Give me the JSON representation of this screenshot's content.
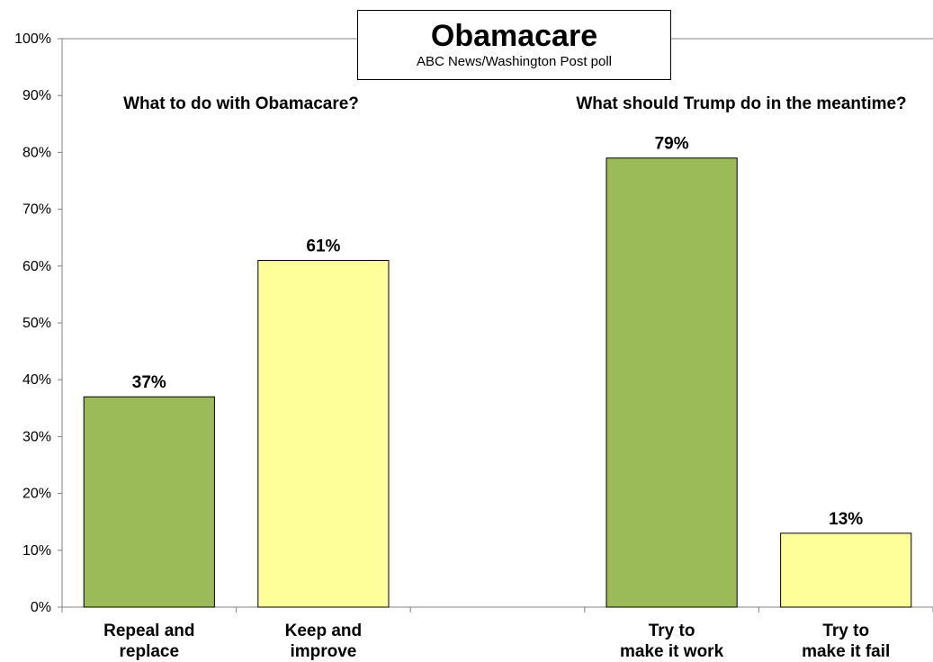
{
  "chart_data": {
    "type": "bar",
    "title": "Obamacare",
    "subtitle": "ABC News/Washington  Post poll",
    "ylim": [
      0,
      100
    ],
    "y_ticks": [
      "0%",
      "10%",
      "20%",
      "30%",
      "40%",
      "50%",
      "60%",
      "70%",
      "80%",
      "90%",
      "100%"
    ],
    "grid": false,
    "groups": [
      {
        "title": "What to do with Obamacare?"
      },
      {
        "title": "What should Trump do in the meantime?"
      }
    ],
    "categories": [
      [
        "Repeal and",
        "replace"
      ],
      [
        "Keep and",
        "improve"
      ],
      [
        "",
        ""
      ],
      [
        "Try to",
        "make it work"
      ],
      [
        "Try to",
        "make it fail"
      ]
    ],
    "values": [
      37,
      61,
      null,
      79,
      13
    ],
    "data_labels": [
      "37%",
      "61%",
      "",
      "79%",
      "13%"
    ],
    "colors": [
      "#9bbb59",
      "#ffff99",
      "",
      "#9bbb59",
      "#ffff99"
    ]
  }
}
